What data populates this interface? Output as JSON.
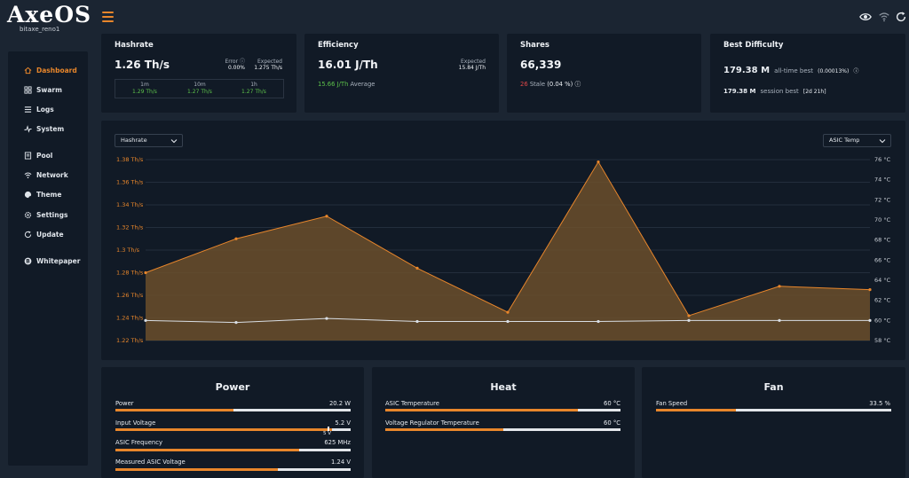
{
  "header": {
    "logo": "AxeOS",
    "hostname": "bitaxe_reno1",
    "icons": [
      "menu-icon",
      "eye-icon",
      "wifi-icon",
      "refresh-icon"
    ]
  },
  "sidebar": {
    "items": [
      {
        "label": "Dashboard",
        "icon": "home-icon",
        "active": true
      },
      {
        "label": "Swarm",
        "icon": "swarm-icon"
      },
      {
        "label": "Logs",
        "icon": "logs-icon"
      },
      {
        "label": "System",
        "icon": "pulse-icon"
      },
      {
        "label": "Pool",
        "icon": "pool-icon"
      },
      {
        "label": "Network",
        "icon": "wifi-icon"
      },
      {
        "label": "Theme",
        "icon": "palette-icon"
      },
      {
        "label": "Settings",
        "icon": "gear-icon"
      },
      {
        "label": "Update",
        "icon": "refresh-icon"
      },
      {
        "label": "Whitepaper",
        "icon": "bitcoin-icon"
      }
    ]
  },
  "hashrate": {
    "title": "Hashrate",
    "value": "1.26 Th/s",
    "error_label": "Error",
    "error_value": "0.00%",
    "expected_label": "Expected",
    "expected_value": "1.275 Th/s",
    "averages": [
      {
        "label": "1m",
        "value": "1.29 Th/s"
      },
      {
        "label": "10m",
        "value": "1.27 Th/s"
      },
      {
        "label": "1h",
        "value": "1.27 Th/s"
      }
    ]
  },
  "efficiency": {
    "title": "Efficiency",
    "value": "16.01 J/Th",
    "expected_label": "Expected",
    "expected_value": "15.84 J/Th",
    "average_value": "15.66 J/Th",
    "average_label": "Average"
  },
  "shares": {
    "title": "Shares",
    "value": "66,339",
    "stale_count": "26",
    "stale_label": "Stale",
    "stale_pct": "(0.04 %)"
  },
  "best_difficulty": {
    "title": "Best Difficulty",
    "all_time_value": "179.38 M",
    "all_time_label": "all-time best",
    "all_time_pct": "(0.00013%)",
    "session_value": "179.38 M",
    "session_label": "session best",
    "session_duration": "[2d 21h]"
  },
  "chart_controls": {
    "left_select": "Hashrate",
    "right_select": "ASIC Temp"
  },
  "chart_data": {
    "type": "line",
    "title": "",
    "left_axis_ticks": [
      "1.38 Th/s",
      "1.36 Th/s",
      "1.34 Th/s",
      "1.32 Th/s",
      "1.3 Th/s",
      "1.28 Th/s",
      "1.26 Th/s",
      "1.24 Th/s",
      "1.22 Th/s"
    ],
    "right_axis_ticks": [
      "76 °C",
      "74 °C",
      "72 °C",
      "70 °C",
      "68 °C",
      "66 °C",
      "64 °C",
      "62 °C",
      "60 °C",
      "58 °C"
    ],
    "ylim_left": [
      1.22,
      1.38
    ],
    "ylim_right": [
      58,
      76
    ],
    "x": [
      0,
      1,
      2,
      3,
      4,
      5,
      6,
      7,
      8
    ],
    "series": [
      {
        "axis": "left",
        "color": "#e8862b",
        "fill": true,
        "values": [
          1.28,
          1.31,
          1.33,
          1.284,
          1.245,
          1.378,
          1.242,
          1.268,
          1.265
        ]
      },
      {
        "axis": "right",
        "color": "#d8dde3",
        "fill": false,
        "values": [
          60.0,
          59.8,
          60.2,
          59.9,
          59.9,
          59.9,
          60.0,
          60.0,
          60.0
        ]
      }
    ],
    "colors": {
      "hashrate": "#e8862b",
      "temp": "#d8dde3"
    }
  },
  "power": {
    "title": "Power",
    "rows": [
      {
        "label": "Power",
        "value": "20.2 W",
        "fill": 0.5
      },
      {
        "label": "Input Voltage",
        "value": "5.2 V",
        "fill": 0.92,
        "marker": "5 V"
      },
      {
        "label": "ASIC Frequency",
        "value": "625 MHz",
        "fill": 0.78
      },
      {
        "label": "Measured ASIC Voltage",
        "value": "1.24 V",
        "fill": 0.69
      }
    ]
  },
  "heat": {
    "title": "Heat",
    "rows": [
      {
        "label": "ASIC Temperature",
        "value": "60 °C",
        "fill": 0.82
      },
      {
        "label": "Voltage Regulator Temperature",
        "value": "60 °C",
        "fill": 0.5
      }
    ]
  },
  "fan": {
    "title": "Fan",
    "rows": [
      {
        "label": "Fan Speed",
        "value": "33.5 %",
        "fill": 0.34
      }
    ]
  }
}
